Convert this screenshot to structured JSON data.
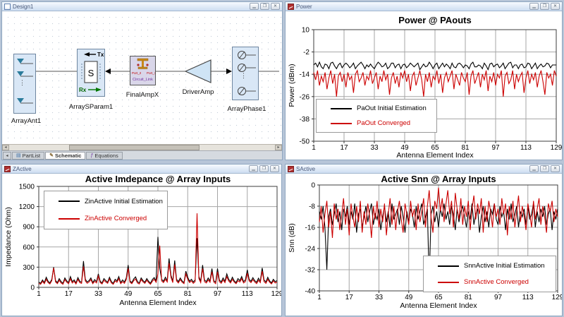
{
  "colors": {
    "mdi_background": "#b7c5d8",
    "grid": "#a6a6a6",
    "series_initial": "#000000",
    "series_converged": "#cc0000"
  },
  "icons": {
    "minimize": "▁",
    "restore": "❐",
    "close": "✕",
    "partlist": "▤",
    "schematic_pencil": "✎",
    "equations": "ƒ",
    "scroll_left": "◂",
    "scroll_right": "▸",
    "tab_scroll": "◂",
    "ellipsis_v": "⋮"
  },
  "schematic": {
    "window_title": "Design1",
    "components": {
      "array_ant": {
        "label": "ArrayAnt1"
      },
      "array_sparam": {
        "label": "ArraySParam1",
        "tx": "Tx",
        "rx": "Rx",
        "s": "S"
      },
      "final_amp": {
        "label": "FinalAmpX",
        "port_left": "Port_2",
        "port_right": "Port_1",
        "link": "Circuit_Link"
      },
      "driver_amp": {
        "label": "DriverAmp"
      },
      "array_phase": {
        "label": "ArrayPhase1"
      }
    },
    "tabs": [
      {
        "label": "PartList",
        "active": false
      },
      {
        "label": "Schematic",
        "active": true
      },
      {
        "label": "Equations",
        "active": false
      }
    ]
  },
  "chart_data": [
    {
      "window_title": "Power",
      "type": "line",
      "title": "Power @ PAouts",
      "xlabel": "Antenna Element Index",
      "ylabel": "Power (dBm)",
      "xlim": [
        1,
        129
      ],
      "ylim": [
        -50,
        10
      ],
      "xticks": [
        1,
        17,
        33,
        49,
        65,
        81,
        97,
        113,
        129
      ],
      "yticks": [
        10,
        -2,
        -14,
        -26,
        -38,
        -50
      ],
      "grid": true,
      "legend_position": "bottom-center-left",
      "series": [
        {
          "name": "PaOut Initial Estimation",
          "color": "#000000",
          "values": [
            -9,
            -8,
            -10,
            -7.5,
            -10,
            -11,
            -8.5,
            -9,
            -11,
            -8,
            -7.5,
            -9.5,
            -11,
            -9,
            -8,
            -10.5,
            -9,
            -8,
            -9,
            -10.5,
            -9.5,
            -8,
            -11,
            -9.5,
            -8.5,
            -7.5,
            -9,
            -11,
            -9,
            -10,
            -8.5,
            -10,
            -11,
            -9,
            -7.5,
            -8.5,
            -10,
            -9.5,
            -8,
            -11,
            -10,
            -8,
            -8,
            -10.5,
            -9,
            -8.5,
            -11,
            -9,
            -8.5,
            -10.5,
            -9.5,
            -8,
            -9,
            -10,
            -9,
            -8,
            -11.5,
            -10,
            -8.5,
            -10,
            -9.5,
            -7.5,
            -9,
            -11,
            -9,
            -8,
            -11,
            -9.5,
            -8,
            -10,
            -8.5,
            -9.5,
            -11,
            -8,
            -10,
            -10.5,
            -8.5,
            -8,
            -9,
            -10.5,
            -9,
            -9.5,
            -11,
            -8.5,
            -7.5,
            -10,
            -10,
            -9,
            -9.5,
            -11,
            -8,
            -9.5,
            -11.5,
            -8.5,
            -8,
            -10,
            -9,
            -8.5,
            -10.5,
            -9.5,
            -8,
            -11,
            -9.5,
            -8,
            -7.5,
            -10.5,
            -9,
            -9,
            -11,
            -9,
            -8.5,
            -10.5,
            -10,
            -8,
            -8.5,
            -11,
            -9.5,
            -8,
            -11,
            -9.5,
            -8.5,
            -10,
            -9.5,
            -8,
            -8.5,
            -10.5,
            -9,
            -9,
            -9
          ]
        },
        {
          "name": "PaOut Converged",
          "color": "#cc0000",
          "values": [
            -13,
            -17,
            -12,
            -20,
            -15,
            -18,
            -13,
            -22,
            -16,
            -12,
            -19,
            -14,
            -26,
            -15,
            -13,
            -18,
            -14,
            -21,
            -13,
            -17,
            -15,
            -24,
            -14,
            -12,
            -18,
            -16,
            -13,
            -20,
            -15,
            -17,
            -12,
            -19,
            -16,
            -13,
            -22,
            -15,
            -18,
            -12,
            -17,
            -14,
            -25,
            -16,
            -13,
            -19,
            -15,
            -21,
            -13,
            -16,
            -12,
            -18,
            -14,
            -23,
            -15,
            -13,
            -20,
            -16,
            -12,
            -17,
            -26,
            -14,
            -18,
            -13,
            -21,
            -15,
            -17,
            -12,
            -19,
            -14,
            -24,
            -16,
            -13,
            -18,
            -15,
            -12,
            -22,
            -14,
            -17,
            -20,
            -13,
            -16,
            -18,
            -13,
            -25,
            -15,
            -12,
            -19,
            -16,
            -13,
            -21,
            -14,
            -17,
            -12,
            -23,
            -15,
            -18,
            -13,
            -20,
            -14,
            -16,
            -12,
            -26,
            -15,
            -13,
            -19,
            -17,
            -12,
            -22,
            -14,
            -18,
            -15,
            -13,
            -24,
            -16,
            -12,
            -19,
            -14,
            -17,
            -13,
            -21,
            -15,
            -12,
            -18,
            -25,
            -13,
            -16,
            -14,
            -20,
            -12,
            -15
          ]
        }
      ]
    },
    {
      "window_title": "ZActive",
      "type": "line",
      "title": "Active Imdepance @ Array Inputs",
      "xlabel": "Antenna Element Index",
      "ylabel": "Impedance (Ohm)",
      "xlim": [
        1,
        129
      ],
      "ylim": [
        0,
        1500
      ],
      "xticks": [
        1,
        17,
        33,
        49,
        65,
        81,
        97,
        113,
        129
      ],
      "yticks": [
        1500,
        1200,
        900,
        600,
        300,
        0
      ],
      "grid": true,
      "legend_position": "top-left",
      "series": [
        {
          "name": "ZinActive Initial Estimation",
          "color": "#000000",
          "values": [
            80,
            60,
            110,
            70,
            150,
            90,
            65,
            120,
            300,
            100,
            70,
            130,
            85,
            60,
            140,
            95,
            70,
            160,
            85,
            110,
            65,
            145,
            90,
            75,
            390,
            120,
            80,
            100,
            140,
            70,
            115,
            85,
            200,
            90,
            65,
            130,
            100,
            75,
            150,
            85,
            60,
            120,
            95,
            160,
            70,
            110,
            80,
            140,
            330,
            95,
            70,
            125,
            155,
            85,
            65,
            140,
            100,
            75,
            130,
            90,
            60,
            115,
            145,
            95,
            750,
            280,
            120,
            90,
            150,
            100,
            430,
            180,
            90,
            400,
            120,
            85,
            140,
            95,
            70,
            240,
            150,
            90,
            120,
            80,
            110,
            730,
            160,
            90,
            330,
            110,
            85,
            140,
            95,
            280,
            100,
            75,
            280,
            110,
            80,
            140,
            90,
            200,
            120,
            85,
            150,
            95,
            70,
            130,
            100,
            160,
            85,
            110,
            260,
            120,
            90,
            145,
            100,
            75,
            135,
            90,
            290,
            110,
            80,
            150,
            95,
            65,
            120,
            85,
            100
          ]
        },
        {
          "name": "ZinActive Converged",
          "color": "#cc0000",
          "values": [
            60,
            45,
            90,
            55,
            120,
            70,
            50,
            100,
            290,
            80,
            55,
            105,
            65,
            45,
            115,
            75,
            55,
            130,
            65,
            90,
            50,
            120,
            70,
            60,
            310,
            95,
            60,
            80,
            115,
            55,
            90,
            65,
            170,
            70,
            50,
            105,
            80,
            60,
            125,
            65,
            45,
            95,
            75,
            130,
            55,
            85,
            60,
            115,
            280,
            75,
            55,
            100,
            125,
            65,
            50,
            115,
            80,
            60,
            105,
            70,
            45,
            90,
            120,
            75,
            200,
            620,
            95,
            70,
            120,
            80,
            360,
            150,
            70,
            340,
            95,
            65,
            115,
            75,
            55,
            200,
            120,
            70,
            95,
            60,
            85,
            1100,
            130,
            70,
            280,
            85,
            65,
            110,
            75,
            230,
            80,
            55,
            230,
            85,
            60,
            110,
            70,
            160,
            95,
            65,
            120,
            75,
            55,
            100,
            80,
            130,
            65,
            85,
            210,
            95,
            70,
            115,
            80,
            55,
            105,
            70,
            240,
            85,
            60,
            120,
            75,
            50,
            95,
            65,
            80
          ]
        }
      ]
    },
    {
      "window_title": "SActive",
      "type": "line",
      "title": "Active Snn @ Array Inputs",
      "xlabel": "Antenna Element Index",
      "ylabel": "Snn (dB)",
      "xlim": [
        1,
        129
      ],
      "ylim": [
        -40,
        0
      ],
      "xticks": [
        1,
        17,
        33,
        49,
        65,
        81,
        97,
        113,
        129
      ],
      "yticks": [
        0,
        -8,
        -16,
        -24,
        -32,
        -40
      ],
      "grid": true,
      "legend_position": "bottom-right",
      "series": [
        {
          "name": "SnnActive Initial Estimation",
          "color": "#000000",
          "values": [
            -10,
            -13,
            -8,
            -16,
            -32,
            -12,
            -9,
            -15,
            -11,
            -7,
            -14,
            -10,
            -17,
            -9,
            -12,
            -8,
            -15,
            -10,
            -13,
            -7,
            -18,
            -11,
            -9,
            -16,
            -12,
            -8,
            -14,
            -10,
            -7,
            -15,
            -11,
            -13,
            -9,
            -17,
            -12,
            -8,
            -14,
            -10,
            -16,
            -7,
            -13,
            -11,
            -9,
            -15,
            -8,
            -12,
            -18,
            -10,
            -14,
            -9,
            -11,
            -16,
            -8,
            -13,
            -10,
            -7,
            -15,
            -12,
            -9,
            -37,
            -11,
            -8,
            -14,
            -10,
            -16,
            -9,
            -12,
            -7,
            -13,
            -10,
            -15,
            -8,
            -11,
            -17,
            -9,
            -14,
            -10,
            -8,
            -12,
            -16,
            -10,
            -13,
            -7,
            -15,
            -11,
            -9,
            -18,
            -12,
            -8,
            -14,
            -10,
            -16,
            -9,
            -11,
            -7,
            -13,
            -15,
            -8,
            -12,
            -10,
            -17,
            -9,
            -13,
            -7,
            -14,
            -11,
            -8,
            -16,
            -10,
            -12,
            -9,
            -15,
            -8,
            -13,
            -11,
            -7,
            -16,
            -10,
            -14,
            -9,
            -12,
            -8,
            -15,
            -11,
            -9,
            -17,
            -10,
            -13,
            -9
          ]
        },
        {
          "name": "SnnActive Converged",
          "color": "#cc0000",
          "values": [
            -14,
            -8,
            -18,
            -11,
            -6,
            -16,
            -10,
            -20,
            -7,
            -13,
            -9,
            -17,
            -11,
            -5,
            -15,
            -9,
            -19,
            -7,
            -12,
            -16,
            -8,
            -14,
            -6,
            -18,
            -10,
            -15,
            -7,
            -12,
            -20,
            -8,
            -13,
            -6,
            -16,
            -9,
            -14,
            -7,
            -19,
            -11,
            -5,
            -15,
            -8,
            -17,
            -10,
            -6,
            -13,
            -18,
            -7,
            -11,
            -15,
            -6,
            -12,
            -9,
            -17,
            -7,
            -14,
            -10,
            -5,
            -16,
            -8,
            -2,
            -12,
            -18,
            -6,
            -9,
            -1,
            -10,
            -5,
            -14,
            -7,
            -2,
            -11,
            -6,
            -16,
            -3,
            -9,
            -13,
            -5,
            -15,
            -8,
            -12,
            -6,
            -17,
            -9,
            -4,
            -13,
            -7,
            -11,
            -5,
            -18,
            -8,
            -14,
            -6,
            -10,
            -16,
            -7,
            -12,
            -9,
            -15,
            -5,
            -11,
            -7,
            -19,
            -8,
            -13,
            -6,
            -16,
            -10,
            -4,
            -14,
            -8,
            -12,
            -17,
            -7,
            -11,
            -16,
            -6,
            -13,
            -9,
            -5,
            -15,
            -8,
            -12,
            -18,
            -7,
            -10,
            -6,
            -14,
            -9,
            -12
          ]
        }
      ]
    }
  ]
}
